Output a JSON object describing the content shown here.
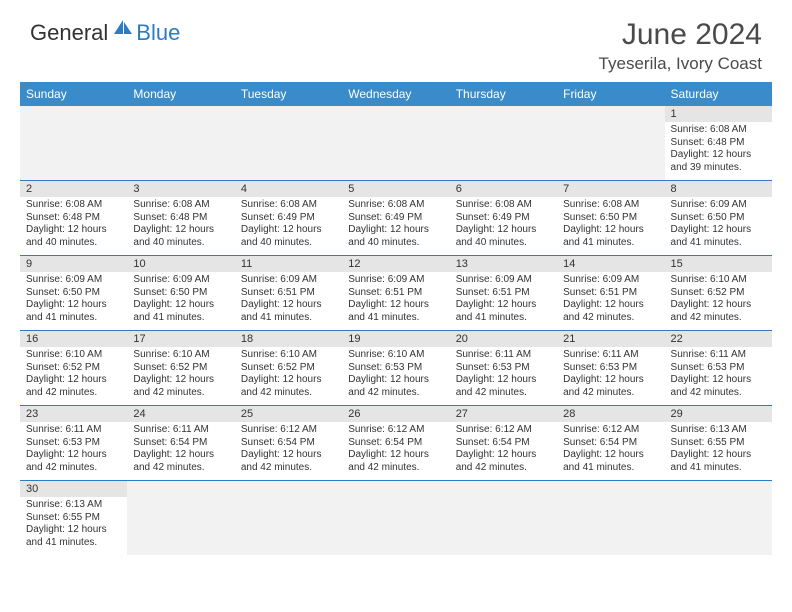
{
  "logo": {
    "text1": "General",
    "text2": "Blue"
  },
  "title": "June 2024",
  "location": "Tyeserila, Ivory Coast",
  "colors": {
    "header_bg": "#3a8bc9",
    "header_text": "#ffffff",
    "daynum_bg": "#e5e5e5",
    "border": "#2d7bc4",
    "logo_blue": "#2d7bc4"
  },
  "day_labels": [
    "Sunday",
    "Monday",
    "Tuesday",
    "Wednesday",
    "Thursday",
    "Friday",
    "Saturday"
  ],
  "weeks": [
    [
      null,
      null,
      null,
      null,
      null,
      null,
      {
        "n": "1",
        "sr": "Sunrise: 6:08 AM",
        "ss": "Sunset: 6:48 PM",
        "dl1": "Daylight: 12 hours",
        "dl2": "and 39 minutes."
      }
    ],
    [
      {
        "n": "2",
        "sr": "Sunrise: 6:08 AM",
        "ss": "Sunset: 6:48 PM",
        "dl1": "Daylight: 12 hours",
        "dl2": "and 40 minutes."
      },
      {
        "n": "3",
        "sr": "Sunrise: 6:08 AM",
        "ss": "Sunset: 6:48 PM",
        "dl1": "Daylight: 12 hours",
        "dl2": "and 40 minutes."
      },
      {
        "n": "4",
        "sr": "Sunrise: 6:08 AM",
        "ss": "Sunset: 6:49 PM",
        "dl1": "Daylight: 12 hours",
        "dl2": "and 40 minutes."
      },
      {
        "n": "5",
        "sr": "Sunrise: 6:08 AM",
        "ss": "Sunset: 6:49 PM",
        "dl1": "Daylight: 12 hours",
        "dl2": "and 40 minutes."
      },
      {
        "n": "6",
        "sr": "Sunrise: 6:08 AM",
        "ss": "Sunset: 6:49 PM",
        "dl1": "Daylight: 12 hours",
        "dl2": "and 40 minutes."
      },
      {
        "n": "7",
        "sr": "Sunrise: 6:08 AM",
        "ss": "Sunset: 6:50 PM",
        "dl1": "Daylight: 12 hours",
        "dl2": "and 41 minutes."
      },
      {
        "n": "8",
        "sr": "Sunrise: 6:09 AM",
        "ss": "Sunset: 6:50 PM",
        "dl1": "Daylight: 12 hours",
        "dl2": "and 41 minutes."
      }
    ],
    [
      {
        "n": "9",
        "sr": "Sunrise: 6:09 AM",
        "ss": "Sunset: 6:50 PM",
        "dl1": "Daylight: 12 hours",
        "dl2": "and 41 minutes."
      },
      {
        "n": "10",
        "sr": "Sunrise: 6:09 AM",
        "ss": "Sunset: 6:50 PM",
        "dl1": "Daylight: 12 hours",
        "dl2": "and 41 minutes."
      },
      {
        "n": "11",
        "sr": "Sunrise: 6:09 AM",
        "ss": "Sunset: 6:51 PM",
        "dl1": "Daylight: 12 hours",
        "dl2": "and 41 minutes."
      },
      {
        "n": "12",
        "sr": "Sunrise: 6:09 AM",
        "ss": "Sunset: 6:51 PM",
        "dl1": "Daylight: 12 hours",
        "dl2": "and 41 minutes."
      },
      {
        "n": "13",
        "sr": "Sunrise: 6:09 AM",
        "ss": "Sunset: 6:51 PM",
        "dl1": "Daylight: 12 hours",
        "dl2": "and 41 minutes."
      },
      {
        "n": "14",
        "sr": "Sunrise: 6:09 AM",
        "ss": "Sunset: 6:51 PM",
        "dl1": "Daylight: 12 hours",
        "dl2": "and 42 minutes."
      },
      {
        "n": "15",
        "sr": "Sunrise: 6:10 AM",
        "ss": "Sunset: 6:52 PM",
        "dl1": "Daylight: 12 hours",
        "dl2": "and 42 minutes."
      }
    ],
    [
      {
        "n": "16",
        "sr": "Sunrise: 6:10 AM",
        "ss": "Sunset: 6:52 PM",
        "dl1": "Daylight: 12 hours",
        "dl2": "and 42 minutes."
      },
      {
        "n": "17",
        "sr": "Sunrise: 6:10 AM",
        "ss": "Sunset: 6:52 PM",
        "dl1": "Daylight: 12 hours",
        "dl2": "and 42 minutes."
      },
      {
        "n": "18",
        "sr": "Sunrise: 6:10 AM",
        "ss": "Sunset: 6:52 PM",
        "dl1": "Daylight: 12 hours",
        "dl2": "and 42 minutes."
      },
      {
        "n": "19",
        "sr": "Sunrise: 6:10 AM",
        "ss": "Sunset: 6:53 PM",
        "dl1": "Daylight: 12 hours",
        "dl2": "and 42 minutes."
      },
      {
        "n": "20",
        "sr": "Sunrise: 6:11 AM",
        "ss": "Sunset: 6:53 PM",
        "dl1": "Daylight: 12 hours",
        "dl2": "and 42 minutes."
      },
      {
        "n": "21",
        "sr": "Sunrise: 6:11 AM",
        "ss": "Sunset: 6:53 PM",
        "dl1": "Daylight: 12 hours",
        "dl2": "and 42 minutes."
      },
      {
        "n": "22",
        "sr": "Sunrise: 6:11 AM",
        "ss": "Sunset: 6:53 PM",
        "dl1": "Daylight: 12 hours",
        "dl2": "and 42 minutes."
      }
    ],
    [
      {
        "n": "23",
        "sr": "Sunrise: 6:11 AM",
        "ss": "Sunset: 6:53 PM",
        "dl1": "Daylight: 12 hours",
        "dl2": "and 42 minutes."
      },
      {
        "n": "24",
        "sr": "Sunrise: 6:11 AM",
        "ss": "Sunset: 6:54 PM",
        "dl1": "Daylight: 12 hours",
        "dl2": "and 42 minutes."
      },
      {
        "n": "25",
        "sr": "Sunrise: 6:12 AM",
        "ss": "Sunset: 6:54 PM",
        "dl1": "Daylight: 12 hours",
        "dl2": "and 42 minutes."
      },
      {
        "n": "26",
        "sr": "Sunrise: 6:12 AM",
        "ss": "Sunset: 6:54 PM",
        "dl1": "Daylight: 12 hours",
        "dl2": "and 42 minutes."
      },
      {
        "n": "27",
        "sr": "Sunrise: 6:12 AM",
        "ss": "Sunset: 6:54 PM",
        "dl1": "Daylight: 12 hours",
        "dl2": "and 42 minutes."
      },
      {
        "n": "28",
        "sr": "Sunrise: 6:12 AM",
        "ss": "Sunset: 6:54 PM",
        "dl1": "Daylight: 12 hours",
        "dl2": "and 41 minutes."
      },
      {
        "n": "29",
        "sr": "Sunrise: 6:13 AM",
        "ss": "Sunset: 6:55 PM",
        "dl1": "Daylight: 12 hours",
        "dl2": "and 41 minutes."
      }
    ],
    [
      {
        "n": "30",
        "sr": "Sunrise: 6:13 AM",
        "ss": "Sunset: 6:55 PM",
        "dl1": "Daylight: 12 hours",
        "dl2": "and 41 minutes."
      },
      null,
      null,
      null,
      null,
      null,
      null
    ]
  ]
}
